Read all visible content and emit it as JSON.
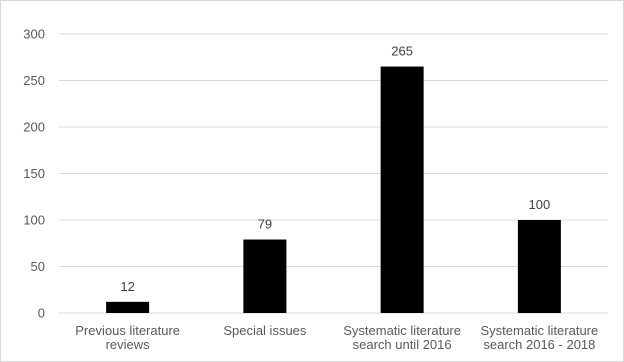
{
  "chart_data": {
    "type": "bar",
    "title": "",
    "xlabel": "",
    "ylabel": "",
    "categories": [
      [
        "Previous literature",
        "reviews"
      ],
      [
        "Special issues"
      ],
      [
        "Systematic literature",
        "search until 2016"
      ],
      [
        "Systematic literature",
        "search 2016 - 2018"
      ]
    ],
    "values": [
      12,
      79,
      265,
      100
    ],
    "data_labels": [
      "12",
      "79",
      "265",
      "100"
    ],
    "yticks": [
      0,
      50,
      100,
      150,
      200,
      250,
      300
    ],
    "ylim": [
      0,
      300
    ],
    "grid": true,
    "legend": "none",
    "colors": {
      "bar": "#000000",
      "grid": "#d9d9d9",
      "text": "#595959"
    }
  }
}
